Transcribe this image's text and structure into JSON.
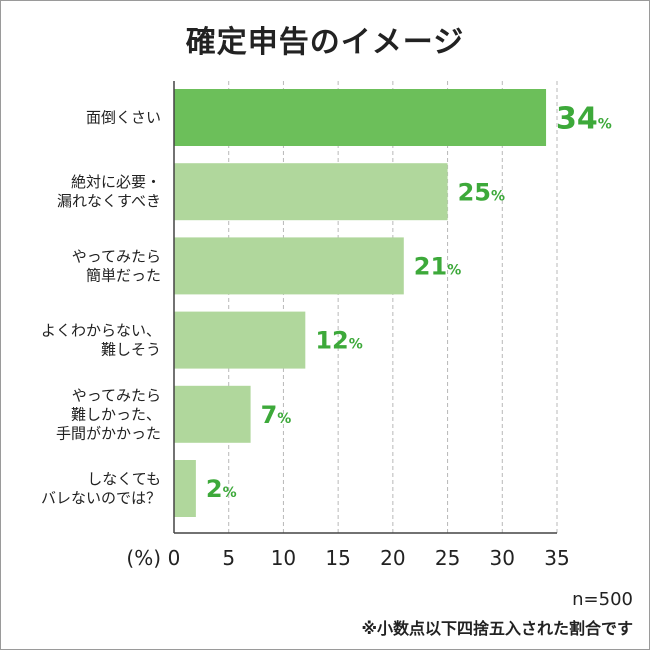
{
  "chart_data": {
    "type": "bar",
    "orientation": "horizontal",
    "title": "確定申告のイメージ",
    "categories": [
      [
        "面倒くさい"
      ],
      [
        "絶対に必要・",
        "漏れなくすべき"
      ],
      [
        "やってみたら",
        "簡単だった"
      ],
      [
        "よくわからない、",
        "難しそう"
      ],
      [
        "やってみたら",
        "難しかった、",
        "手間がかかった"
      ],
      [
        "しなくても",
        "バレないのでは？"
      ]
    ],
    "values": [
      34,
      25,
      21,
      12,
      7,
      2
    ],
    "value_suffix": "%",
    "xlim": [
      0,
      35
    ],
    "xticks": [
      0,
      5,
      10,
      15,
      20,
      25,
      30,
      35
    ],
    "xlabel": "(%)",
    "grid": "vertical-dashed",
    "colors": {
      "highlight_bar": "#6cbf5a",
      "bar": "#b0d79c",
      "value_text": "#3da93a"
    }
  },
  "notes": {
    "sample_size": "n=500",
    "rounding": "※小数点以下四捨五入された割合です"
  }
}
